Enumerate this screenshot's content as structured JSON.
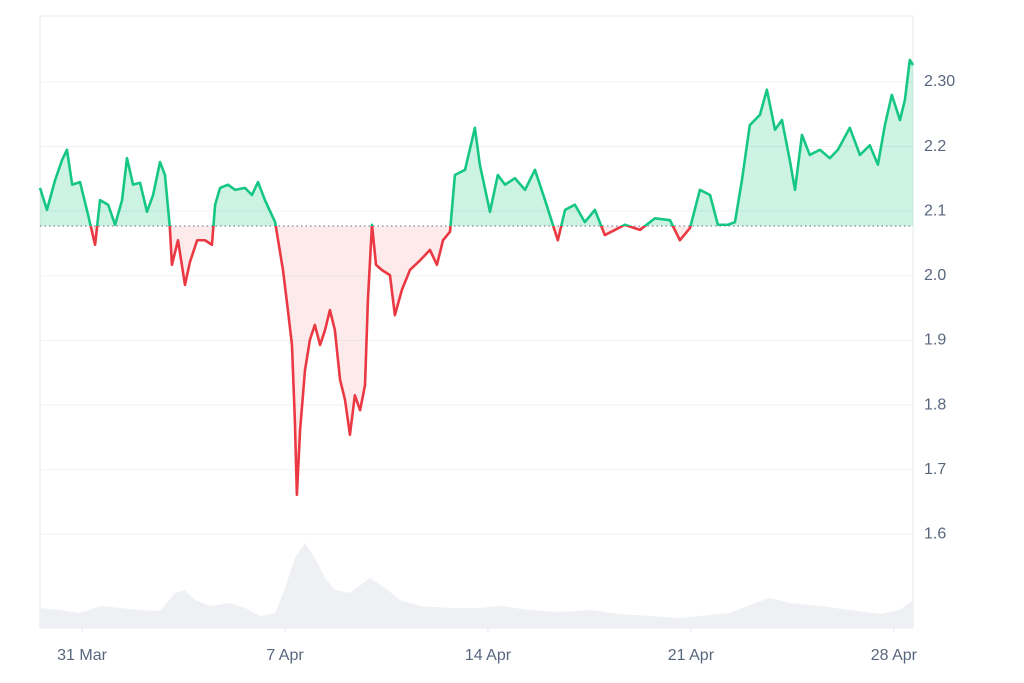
{
  "chart_data": {
    "type": "line",
    "up_color": "#16c784",
    "down_color": "#ea3943",
    "baseline": 2.077,
    "xlim": [
      -1.45,
      28.66
    ],
    "xticks": [
      {
        "value": 0,
        "label": "31 Mar"
      },
      {
        "value": 7,
        "label": "7 Apr"
      },
      {
        "value": 14,
        "label": "14 Apr"
      },
      {
        "value": 21,
        "label": "21 Apr"
      },
      {
        "value": 28,
        "label": "28 Apr"
      }
    ],
    "ylim": [
      1.455,
      2.402
    ],
    "yticks": [
      1.6,
      1.7,
      1.8,
      1.9,
      {
        "value": 2,
        "label": "2.0"
      },
      2.1,
      2.2,
      {
        "value": 2.3,
        "label": "2.30"
      }
    ],
    "grid": true,
    "x": [
      -1.45,
      -1.21,
      -0.93,
      -0.69,
      -0.52,
      -0.34,
      -0.07,
      0.21,
      0.45,
      0.62,
      0.9,
      1.14,
      1.38,
      1.55,
      1.76,
      2.0,
      2.24,
      2.45,
      2.69,
      2.86,
      3.03,
      3.1,
      3.31,
      3.55,
      3.72,
      3.97,
      4.24,
      4.48,
      4.59,
      4.76,
      5.03,
      5.28,
      5.62,
      5.86,
      6.07,
      6.31,
      6.66,
      6.93,
      7.1,
      7.24,
      7.34,
      7.41,
      7.52,
      7.69,
      7.86,
      8.03,
      8.21,
      8.38,
      8.55,
      8.72,
      8.9,
      9.07,
      9.24,
      9.41,
      9.59,
      9.76,
      9.86,
      10.0,
      10.14,
      10.34,
      10.62,
      10.79,
      11.03,
      11.31,
      11.66,
      12.0,
      12.24,
      12.45,
      12.69,
      12.86,
      13.21,
      13.55,
      13.72,
      14.07,
      14.34,
      14.59,
      14.93,
      15.28,
      15.62,
      15.97,
      16.21,
      16.41,
      16.66,
      17.0,
      17.34,
      17.69,
      18.03,
      18.38,
      18.72,
      19.24,
      19.76,
      20.28,
      20.62,
      20.97,
      21.31,
      21.66,
      21.93,
      22.28,
      22.52,
      22.76,
      23.03,
      23.38,
      23.62,
      23.9,
      24.14,
      24.41,
      24.59,
      24.83,
      25.1,
      25.45,
      25.79,
      26.07,
      26.48,
      26.83,
      27.17,
      27.45,
      27.69,
      27.93,
      28.21,
      28.38,
      28.55,
      28.66
    ],
    "values": [
      2.136,
      2.102,
      2.148,
      2.179,
      2.195,
      2.141,
      2.145,
      2.094,
      2.048,
      2.117,
      2.11,
      2.079,
      2.117,
      2.182,
      2.141,
      2.144,
      2.099,
      2.125,
      2.176,
      2.156,
      2.074,
      2.017,
      2.055,
      1.986,
      2.021,
      2.055,
      2.055,
      2.048,
      2.11,
      2.136,
      2.141,
      2.133,
      2.136,
      2.125,
      2.145,
      2.117,
      2.083,
      2.009,
      1.947,
      1.893,
      1.777,
      1.661,
      1.761,
      1.854,
      1.901,
      1.924,
      1.893,
      1.916,
      1.947,
      1.916,
      1.839,
      1.808,
      1.754,
      1.815,
      1.792,
      1.831,
      1.963,
      2.079,
      2.017,
      2.009,
      2.001,
      1.939,
      1.978,
      2.009,
      2.024,
      2.04,
      2.017,
      2.055,
      2.068,
      2.156,
      2.164,
      2.229,
      2.172,
      2.099,
      2.156,
      2.141,
      2.151,
      2.133,
      2.164,
      2.117,
      2.083,
      2.055,
      2.102,
      2.11,
      2.083,
      2.102,
      2.063,
      2.071,
      2.079,
      2.071,
      2.089,
      2.086,
      2.055,
      2.074,
      2.133,
      2.125,
      2.079,
      2.079,
      2.083,
      2.148,
      2.233,
      2.249,
      2.288,
      2.226,
      2.241,
      2.179,
      2.133,
      2.218,
      2.187,
      2.195,
      2.182,
      2.195,
      2.229,
      2.187,
      2.202,
      2.172,
      2.233,
      2.28,
      2.241,
      2.272,
      2.334,
      2.326
    ],
    "volume": {
      "color": "#eef0f3",
      "ylim": [
        0,
        90
      ],
      "x": [
        -1.45,
        -0.76,
        -0.07,
        0.62,
        1.31,
        2.0,
        2.69,
        3.21,
        3.55,
        3.9,
        4.41,
        5.1,
        5.62,
        6.14,
        6.66,
        7.0,
        7.34,
        7.69,
        8.03,
        8.38,
        8.72,
        9.24,
        9.93,
        10.45,
        10.97,
        11.66,
        12.69,
        13.72,
        14.41,
        15.45,
        16.48,
        17.52,
        18.55,
        19.59,
        20.62,
        21.31,
        22.34,
        23.21,
        23.72,
        24.41,
        25.45,
        26.48,
        27.52,
        28.21,
        28.66
      ],
      "values": [
        20,
        18,
        15,
        22,
        20,
        18,
        17,
        35,
        38,
        28,
        22,
        25,
        20,
        12,
        15,
        40,
        70,
        85,
        70,
        50,
        38,
        35,
        50,
        40,
        28,
        22,
        20,
        20,
        22,
        18,
        16,
        18,
        14,
        12,
        10,
        12,
        15,
        25,
        30,
        25,
        22,
        18,
        14,
        18,
        28
      ]
    }
  }
}
